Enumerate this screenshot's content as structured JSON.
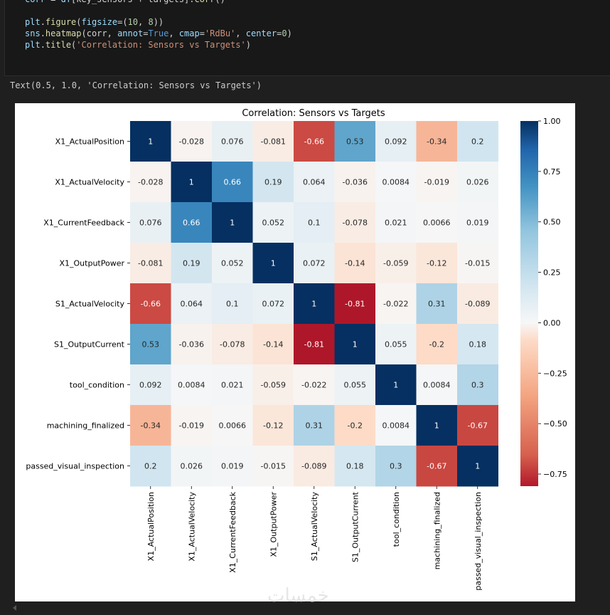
{
  "code": {
    "lines": [
      {
        "cls": "cut",
        "tokens": [
          [
            "tk-var",
            "corr"
          ],
          [
            "tk-p",
            " = "
          ],
          [
            "tk-var",
            "df"
          ],
          [
            "tk-p",
            "[key_sensors + targets]."
          ],
          [
            "tk-fn",
            "corr"
          ],
          [
            "tk-p",
            "()"
          ]
        ]
      },
      {
        "cls": "",
        "tokens": []
      },
      {
        "cls": "",
        "tokens": [
          [
            "tk-var",
            "plt"
          ],
          [
            "tk-p",
            "."
          ],
          [
            "tk-fn",
            "figure"
          ],
          [
            "tk-p",
            "("
          ],
          [
            "tk-var",
            "figsize"
          ],
          [
            "tk-p",
            "=("
          ],
          [
            "tk-num",
            "10"
          ],
          [
            "tk-p",
            ", "
          ],
          [
            "tk-num",
            "8"
          ],
          [
            "tk-p",
            "))"
          ]
        ]
      },
      {
        "cls": "",
        "tokens": [
          [
            "tk-var",
            "sns"
          ],
          [
            "tk-p",
            "."
          ],
          [
            "tk-fn",
            "heatmap"
          ],
          [
            "tk-p",
            "(corr, "
          ],
          [
            "tk-var",
            "annot"
          ],
          [
            "tk-p",
            "="
          ],
          [
            "tk-kw",
            "True"
          ],
          [
            "tk-p",
            ", "
          ],
          [
            "tk-var",
            "cmap"
          ],
          [
            "tk-p",
            "="
          ],
          [
            "tk-str",
            "'RdBu'"
          ],
          [
            "tk-p",
            ", "
          ],
          [
            "tk-var",
            "center"
          ],
          [
            "tk-p",
            "="
          ],
          [
            "tk-num",
            "0"
          ],
          [
            "tk-p",
            ")"
          ]
        ]
      },
      {
        "cls": "",
        "tokens": [
          [
            "tk-var",
            "plt"
          ],
          [
            "tk-p",
            "."
          ],
          [
            "tk-fn",
            "title"
          ],
          [
            "tk-p",
            "("
          ],
          [
            "tk-str",
            "'Correlation: Sensors vs Targets'"
          ],
          [
            "tk-p",
            ")"
          ]
        ]
      }
    ]
  },
  "output_text": "Text(0.5, 1.0, 'Correlation: Sensors vs Targets')",
  "watermark": "خمسات",
  "chart_data": {
    "type": "heatmap",
    "title": "Correlation: Sensors vs Targets",
    "colormap": "RdBu",
    "center": 0,
    "rows": [
      "X1_ActualPosition",
      "X1_ActualVelocity",
      "X1_CurrentFeedback",
      "X1_OutputPower",
      "S1_ActualVelocity",
      "S1_OutputCurrent",
      "tool_condition",
      "machining_finalized",
      "passed_visual_inspection"
    ],
    "cols": [
      "X1_ActualPosition",
      "X1_ActualVelocity",
      "X1_CurrentFeedback",
      "X1_OutputPower",
      "S1_ActualVelocity",
      "S1_OutputCurrent",
      "tool_condition",
      "machining_finalized",
      "passed_visual_inspection"
    ],
    "values": [
      [
        1,
        -0.028,
        0.076,
        -0.081,
        -0.66,
        0.53,
        0.092,
        -0.34,
        0.2
      ],
      [
        -0.028,
        1,
        0.66,
        0.19,
        0.064,
        -0.036,
        0.0084,
        -0.019,
        0.026
      ],
      [
        0.076,
        0.66,
        1,
        0.052,
        0.1,
        -0.078,
        0.021,
        0.0066,
        0.019
      ],
      [
        -0.081,
        0.19,
        0.052,
        1,
        0.072,
        -0.14,
        -0.059,
        -0.12,
        -0.015
      ],
      [
        -0.66,
        0.064,
        0.1,
        0.072,
        1,
        -0.81,
        -0.022,
        0.31,
        -0.089
      ],
      [
        0.53,
        -0.036,
        -0.078,
        -0.14,
        -0.81,
        1,
        0.055,
        -0.2,
        0.18
      ],
      [
        0.092,
        0.0084,
        0.021,
        -0.059,
        -0.022,
        0.055,
        1,
        0.0084,
        0.3
      ],
      [
        -0.34,
        -0.019,
        0.0066,
        -0.12,
        0.31,
        -0.2,
        0.0084,
        1,
        -0.67
      ],
      [
        0.2,
        0.026,
        0.019,
        -0.015,
        -0.089,
        0.18,
        0.3,
        -0.67,
        1
      ]
    ],
    "colorbar": {
      "range": [
        -0.81,
        1.0
      ],
      "ticks": [
        1.0,
        0.75,
        0.5,
        0.25,
        0.0,
        -0.25,
        -0.5,
        -0.75
      ],
      "tick_labels": [
        "1.00",
        "0.75",
        "0.50",
        "0.25",
        "0.00",
        "−0.25",
        "−0.50",
        "−0.75"
      ]
    }
  }
}
